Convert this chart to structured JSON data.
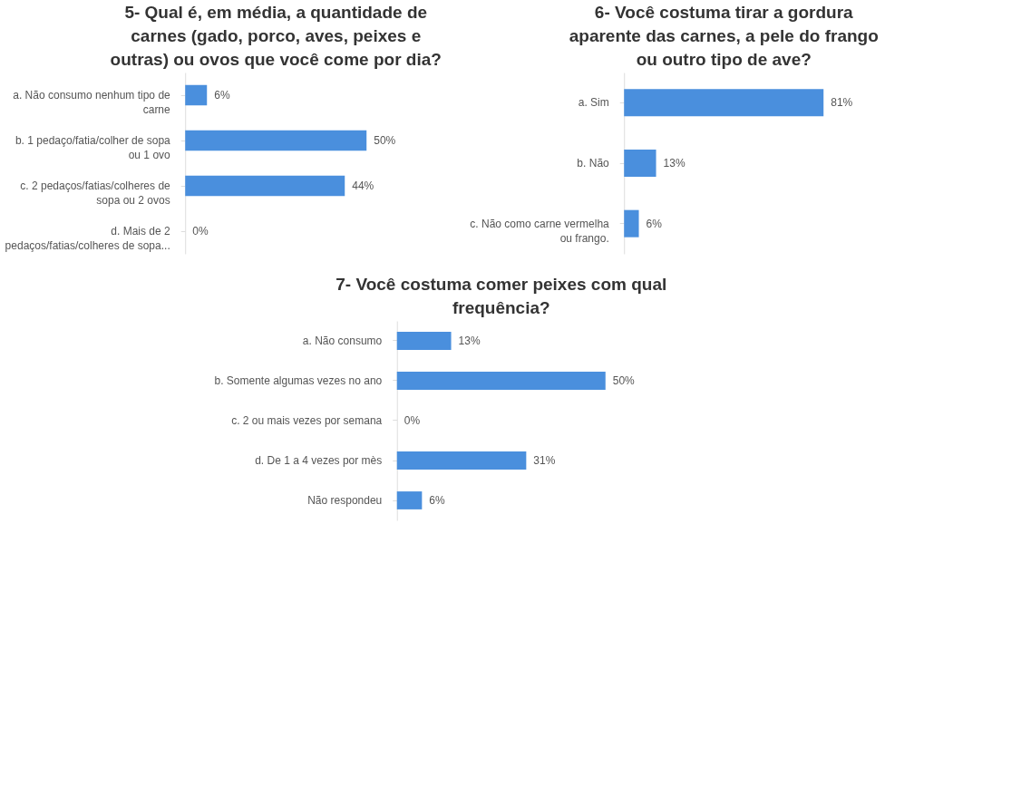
{
  "chart_data": [
    {
      "type": "bar",
      "orientation": "horizontal",
      "title": "5- Qual é, em média, a quantidade de carnes (gado, porco, aves, peixes e outras) ou ovos que você come por dia?",
      "categories": [
        "a. Não consumo nenhum tipo de carne",
        "b. 1 pedaço/fatia/colher de sopa ou 1 ovo",
        "c. 2 pedaços/fatias/colheres de sopa ou 2 ovos",
        "d.  Mais de 2 pedaços/fatias/colheres de sopa..."
      ],
      "values": [
        6,
        50,
        44,
        0
      ],
      "value_labels": [
        "6%",
        "50%",
        "44%",
        "0%"
      ],
      "color": "#4a8fdd"
    },
    {
      "type": "bar",
      "orientation": "horizontal",
      "title": "6- Você costuma tirar a gordura aparente das carnes, a pele do frango ou outro tipo de ave?",
      "categories": [
        "a.  Sim",
        "b.  Não",
        "c. Não como carne vermelha ou frango."
      ],
      "values": [
        81,
        13,
        6
      ],
      "value_labels": [
        "81%",
        "13%",
        "6%"
      ],
      "color": "#4a8fdd"
    },
    {
      "type": "bar",
      "orientation": "horizontal",
      "title": "7- Você costuma comer peixes com qual frequência?",
      "categories": [
        "a.  Não consumo",
        "b. Somente algumas vezes no ano",
        "c. 2 ou mais vezes por semana",
        "d. De 1 a 4 vezes por mès",
        "Não respondeu"
      ],
      "values": [
        13,
        50,
        0,
        31,
        6
      ],
      "value_labels": [
        "13%",
        "50%",
        "0%",
        "31%",
        "6%"
      ],
      "color": "#4a8fdd"
    }
  ]
}
